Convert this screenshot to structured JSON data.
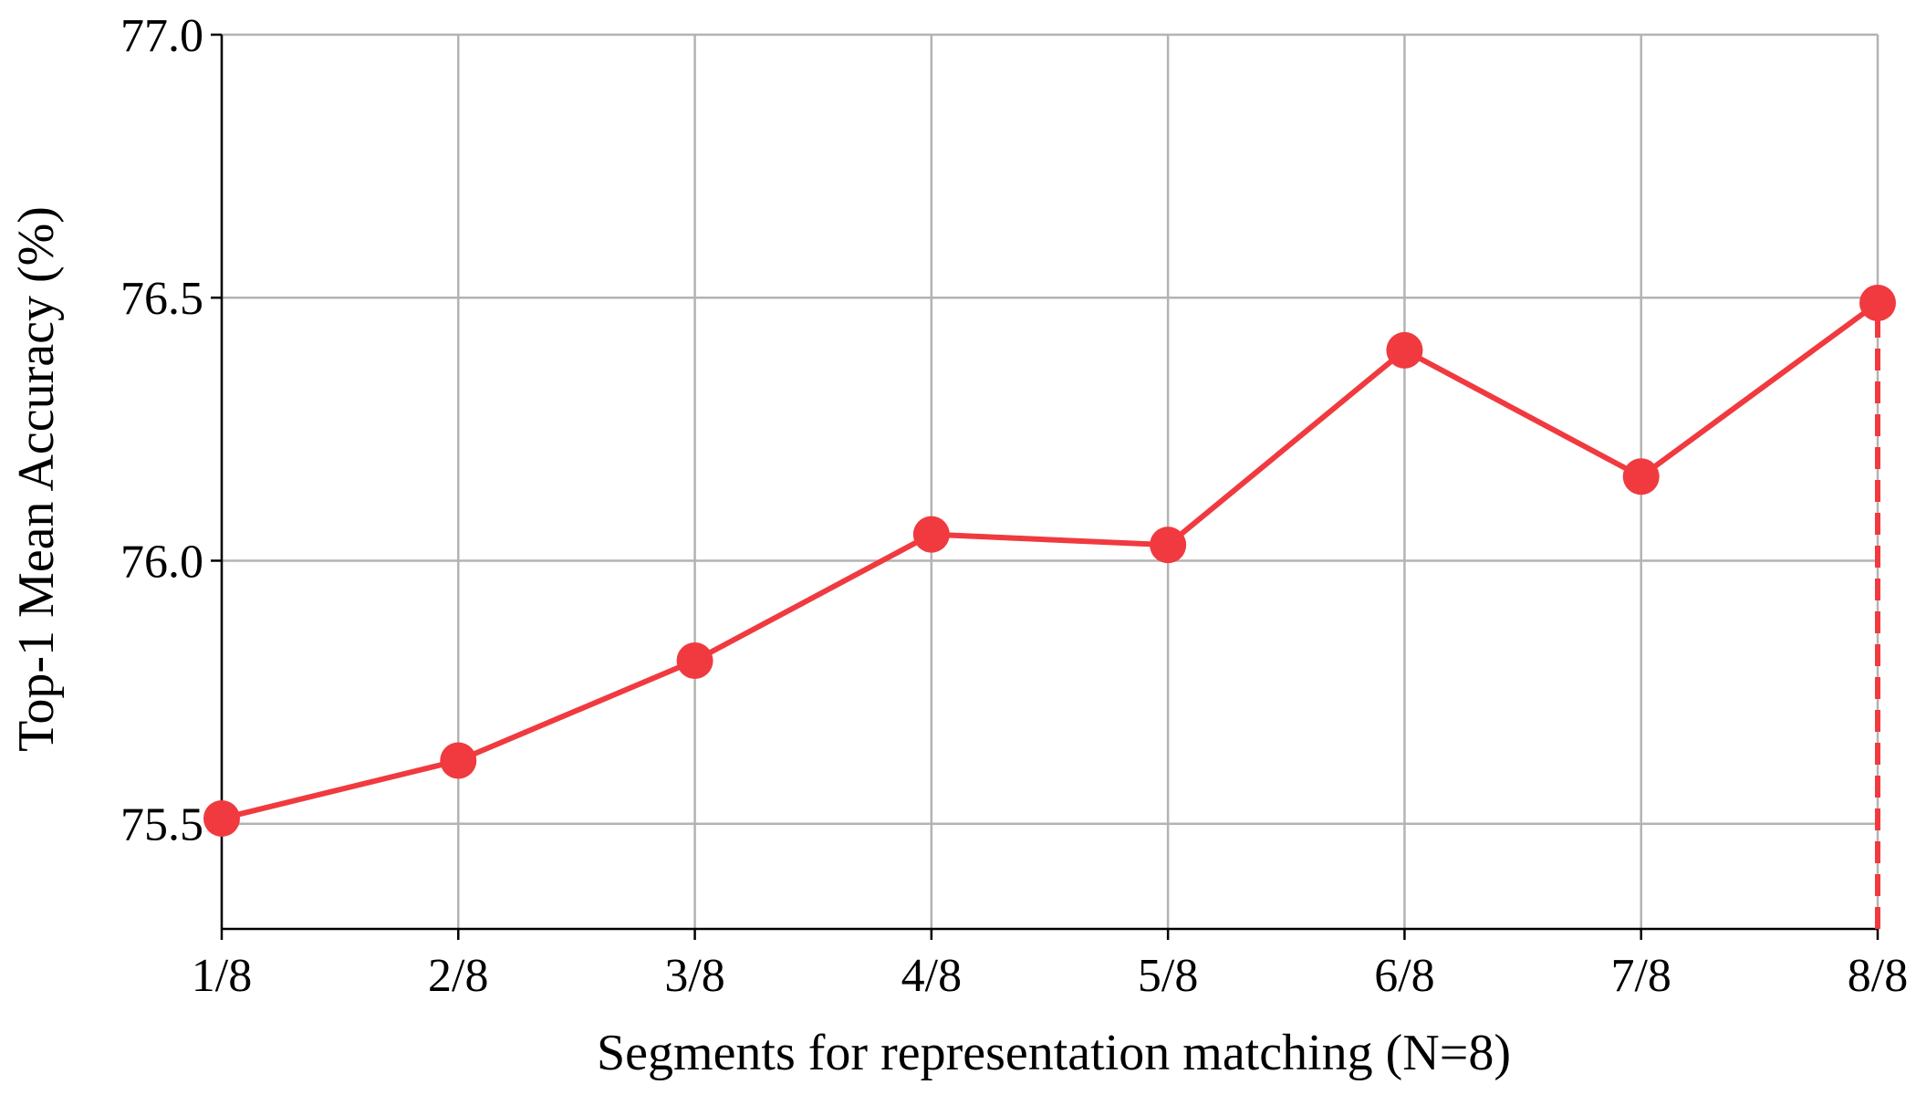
{
  "chart_data": {
    "type": "line",
    "title": "",
    "xlabel": "Segments for representation matching (N=8)",
    "ylabel": "Top-1 Mean Accuracy (%)",
    "categories": [
      "1/8",
      "2/8",
      "3/8",
      "4/8",
      "5/8",
      "6/8",
      "7/8",
      "8/8"
    ],
    "ylim": [
      75.3,
      77.0
    ],
    "yticks": [
      75.5,
      76.0,
      76.5,
      77.0
    ],
    "ytick_labels": [
      "75.5",
      "76.0",
      "76.5",
      "77.0"
    ],
    "grid": true,
    "series": [
      {
        "values": [
          75.51,
          75.62,
          75.81,
          76.05,
          76.03,
          76.4,
          76.16,
          76.49
        ],
        "color": "#f03a3f",
        "marker": "circle"
      }
    ],
    "reference_line": {
      "category": "8/8",
      "from_value": 75.3,
      "to_value": 76.49,
      "style": "dashed",
      "color": "#f03a3f"
    }
  }
}
